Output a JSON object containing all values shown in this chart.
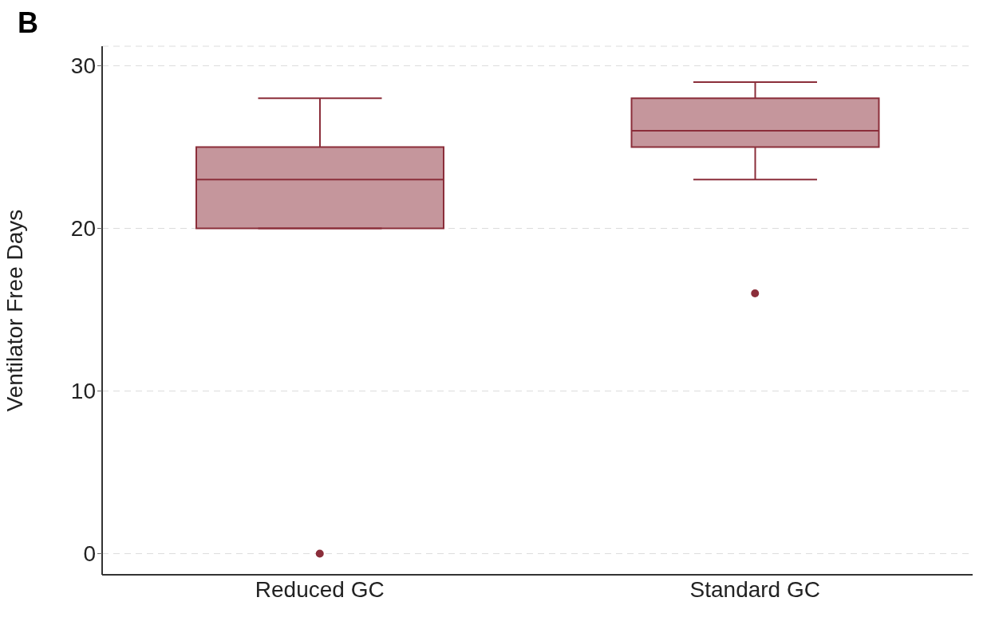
{
  "chart_data": {
    "type": "box",
    "title": "B",
    "ylabel": "Ventilator Free Days",
    "categories": [
      "Reduced GC",
      "Standard GC"
    ],
    "boxes": [
      {
        "low": 20,
        "q1": 20,
        "median": 23,
        "q3": 25,
        "high": 28,
        "outliers": [
          0
        ]
      },
      {
        "low": 23,
        "q1": 25,
        "median": 26,
        "q3": 28,
        "high": 29,
        "outliers": [
          16
        ]
      }
    ],
    "color": "#8b2e3a",
    "ylim": [
      -1.3,
      31.2
    ],
    "yticks": [
      0,
      10,
      20,
      30
    ],
    "grid": "y"
  }
}
